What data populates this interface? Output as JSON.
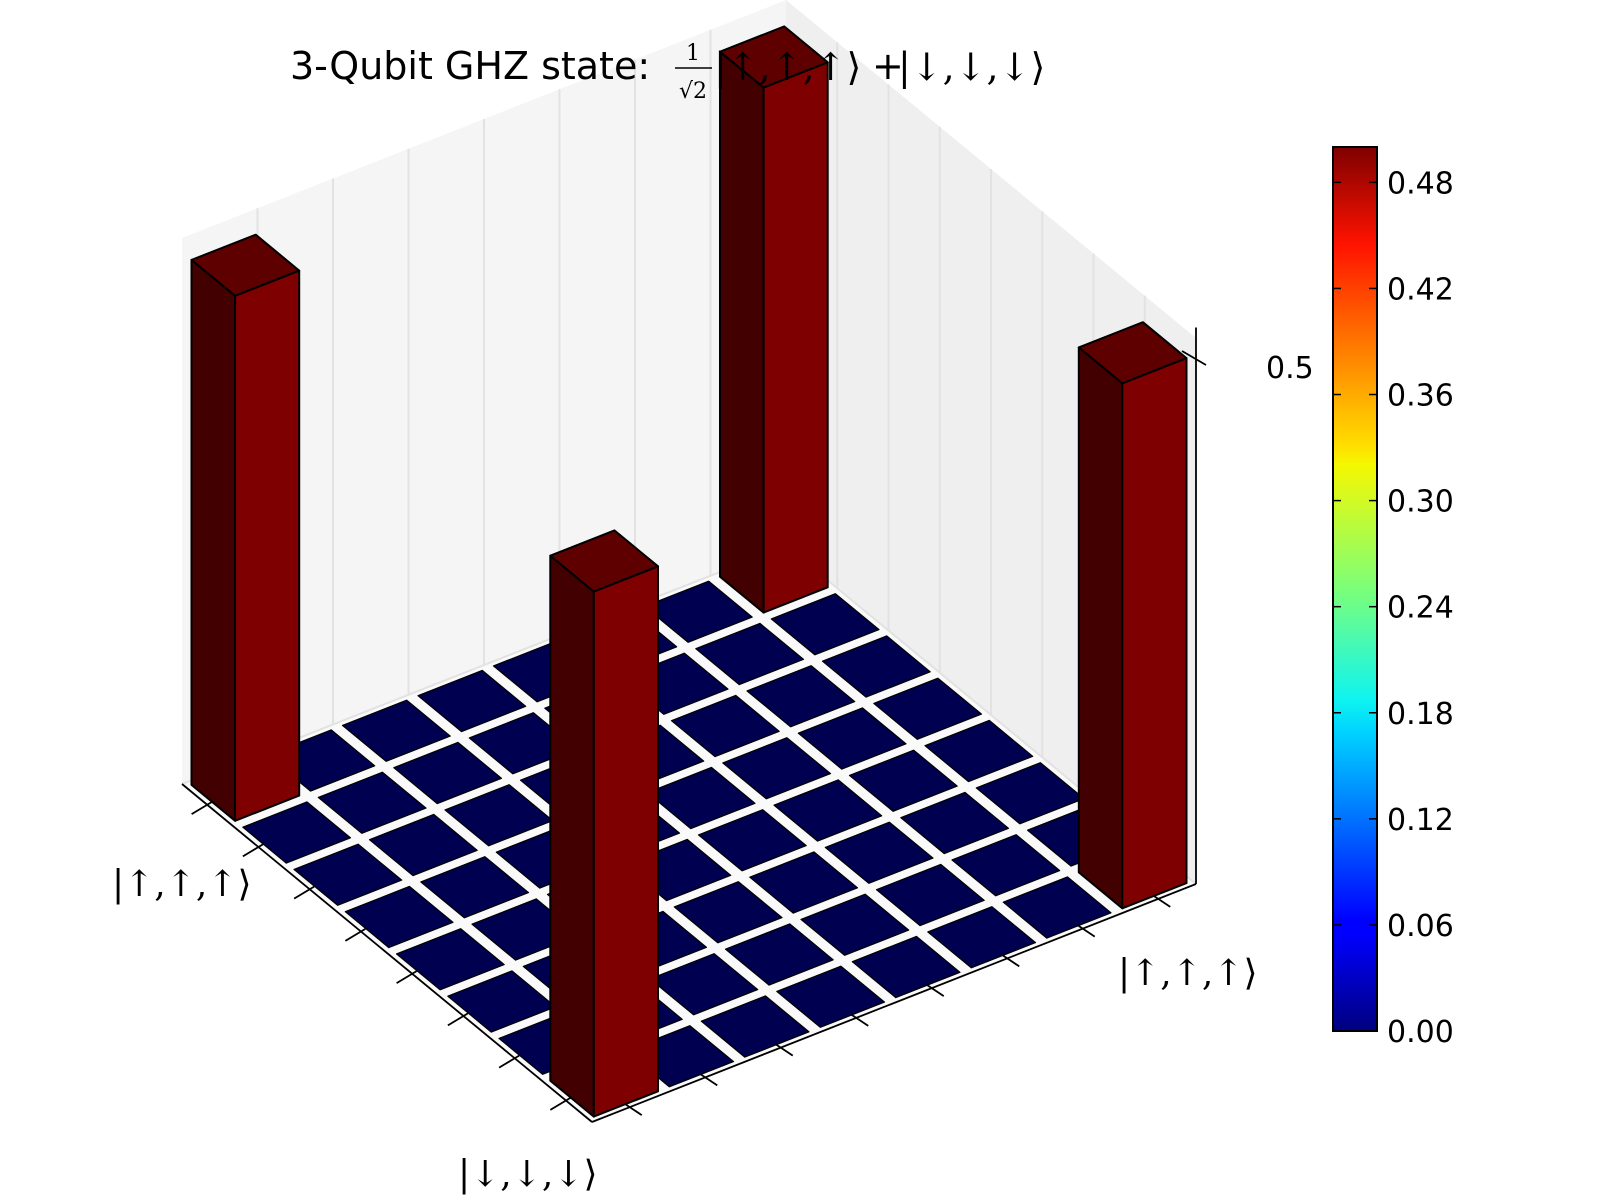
{
  "chart_data": {
    "type": "bar3d",
    "title_prefix": "3-Qubit GHZ state: ",
    "title_frac_num": "1",
    "title_frac_den": "√2",
    "title_ket_up": "|↑,↑,↑⟩",
    "title_plus": "+",
    "title_ket_down": "|↓,↓,↓⟩",
    "x_tick_labels": [
      "|↑,↑,↑⟩",
      "",
      "",
      "",
      "",
      "",
      "",
      "|↓,↓,↓⟩"
    ],
    "y_tick_labels": [
      "|↑,↑,↑⟩",
      "",
      "",
      "",
      "",
      "",
      "",
      ""
    ],
    "z_tick_labels": [
      "0.5"
    ],
    "zlim": [
      0,
      0.5
    ],
    "matrix_size": 8,
    "values": [
      [
        0.5,
        0,
        0,
        0,
        0,
        0,
        0,
        0.5
      ],
      [
        0,
        0,
        0,
        0,
        0,
        0,
        0,
        0
      ],
      [
        0,
        0,
        0,
        0,
        0,
        0,
        0,
        0
      ],
      [
        0,
        0,
        0,
        0,
        0,
        0,
        0,
        0
      ],
      [
        0,
        0,
        0,
        0,
        0,
        0,
        0,
        0
      ],
      [
        0,
        0,
        0,
        0,
        0,
        0,
        0,
        0
      ],
      [
        0,
        0,
        0,
        0,
        0,
        0,
        0,
        0
      ],
      [
        0.5,
        0,
        0,
        0,
        0,
        0,
        0,
        0.5
      ]
    ],
    "colormap": "jet",
    "colorbar": {
      "ticks": [
        "0.00",
        "0.06",
        "0.12",
        "0.18",
        "0.24",
        "0.30",
        "0.36",
        "0.42",
        "0.48"
      ],
      "range": [
        0,
        0.5
      ]
    },
    "colors": {
      "high_front": "#7f0000",
      "high_side": "#420000",
      "high_top": "#5e0000",
      "low_top": "#000050",
      "pane_back": "#f5f5f5",
      "pane_side": "#efefef",
      "pane_floor": "#fafafa",
      "grid": "#e2e2e2"
    }
  }
}
